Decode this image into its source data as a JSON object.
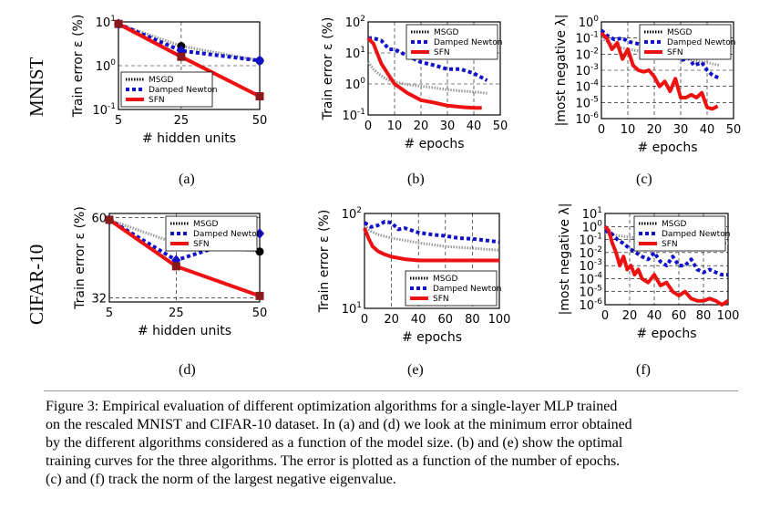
{
  "row_labels": [
    "MNIST",
    "CIFAR-10"
  ],
  "sublabels": [
    "(a)",
    "(b)",
    "(c)",
    "(d)",
    "(e)",
    "(f)"
  ],
  "legend": {
    "msgd": "MSGD",
    "damped": "Damped Newton",
    "sfn": "SFN"
  },
  "colors": {
    "msgd": "#999999",
    "damped": "#1111cc",
    "sfn": "#ee1111"
  },
  "caption": {
    "lines": [
      "Figure 3:  Empirical evaluation of different optimization algorithms for a single-layer MLP trained",
      "on the rescaled MNIST and CIFAR-10 dataset. In (a) and (d) we look at the minimum error obtained",
      "by the different algorithms considered as a function of the model size. (b) and (e) show the optimal",
      "training curves for the three algorithms. The error is plotted as a function of the number of epochs.",
      "(c) and (f) track the norm of the largest negative eigenvalue."
    ]
  },
  "chart_data": [
    {
      "id": "a",
      "type": "line",
      "xlabel": "# hidden units",
      "ylabel": "Train error ε (%)",
      "xticks": [
        "5",
        "25",
        "50"
      ],
      "yticks": [
        "10^1",
        "10^0",
        "10^-1"
      ],
      "yscale": "log",
      "ylim": [
        0.1,
        10
      ],
      "x": [
        5,
        25,
        50
      ],
      "series": [
        {
          "name": "MSGD",
          "values": [
            9.0,
            2.8,
            1.3
          ]
        },
        {
          "name": "Damped Newton",
          "values": [
            9.0,
            2.2,
            1.3
          ]
        },
        {
          "name": "SFN",
          "values": [
            9.0,
            1.6,
            0.2
          ]
        }
      ],
      "legend_position": "bottom-left"
    },
    {
      "id": "b",
      "type": "line",
      "xlabel": "# epochs",
      "ylabel": "Train error ε (%)",
      "xticks": [
        "0",
        "10",
        "20",
        "30",
        "40",
        "50"
      ],
      "yticks": [
        "10^2",
        "10^1",
        "10^0",
        "10^-1"
      ],
      "yscale": "log",
      "xlim": [
        0,
        50
      ],
      "ylim": [
        0.1,
        100
      ],
      "series": [
        {
          "name": "MSGD",
          "x": [
            0,
            2,
            4,
            6,
            8,
            10,
            15,
            20,
            25,
            30,
            35,
            40,
            45
          ],
          "values": [
            5,
            3,
            2.1,
            1.6,
            1.3,
            1.15,
            0.95,
            0.85,
            0.75,
            0.65,
            0.6,
            0.55,
            0.5
          ]
        },
        {
          "name": "Damped Newton",
          "x": [
            0,
            2,
            5,
            8,
            10,
            15,
            20,
            25,
            30,
            35,
            40,
            45
          ],
          "values": [
            30,
            30,
            25,
            13,
            13,
            8,
            5,
            4,
            3,
            3,
            2.2,
            1.3
          ]
        },
        {
          "name": "SFN",
          "x": [
            0,
            2,
            5,
            8,
            10,
            15,
            20,
            25,
            30,
            35,
            40,
            43
          ],
          "values": [
            30,
            20,
            4.5,
            1.8,
            1.0,
            0.5,
            0.3,
            0.25,
            0.2,
            0.18,
            0.17,
            0.17
          ]
        }
      ],
      "legend_position": "top-right"
    },
    {
      "id": "c",
      "type": "line",
      "xlabel": "# epochs",
      "ylabel": "|most negative λ|",
      "xticks": [
        "0",
        "10",
        "20",
        "30",
        "40",
        "50"
      ],
      "yticks": [
        "10^0",
        "10^-1",
        "10^-2",
        "10^-3",
        "10^-4",
        "10^-5",
        "10^-6"
      ],
      "yscale": "log",
      "xlim": [
        0,
        50
      ],
      "ylim": [
        1e-06,
        1
      ],
      "series": [
        {
          "name": "MSGD",
          "x": [
            0,
            5,
            10,
            15,
            20,
            25,
            30,
            35,
            40,
            45
          ],
          "values": [
            0.1,
            0.03,
            0.02,
            0.015,
            0.01,
            0.008,
            0.006,
            0.004,
            0.003,
            0.002
          ]
        },
        {
          "name": "Damped Newton",
          "x": [
            0,
            2,
            5,
            8,
            10,
            15,
            18,
            20,
            25,
            28,
            30,
            33,
            35,
            38,
            40,
            42,
            45
          ],
          "values": [
            0.3,
            0.15,
            0.08,
            0.1,
            0.06,
            0.04,
            0.01,
            0.02,
            0.008,
            0.01,
            0.004,
            0.006,
            0.002,
            0.003,
            0.001,
            0.0005,
            0.0003
          ]
        },
        {
          "name": "SFN",
          "x": [
            0,
            2,
            4,
            6,
            8,
            10,
            12,
            14,
            16,
            18,
            20,
            22,
            24,
            26,
            28,
            30,
            32,
            34,
            36,
            38,
            40,
            42,
            44
          ],
          "values": [
            0.2,
            0.1,
            0.02,
            0.05,
            0.005,
            0.02,
            0.002,
            0.001,
            0.0008,
            0.001,
            0.0004,
            0.0001,
            0.0002,
            5e-05,
            0.0003,
            2e-05,
            2e-05,
            3e-05,
            2e-05,
            4e-05,
            5e-06,
            4e-06,
            6e-06
          ]
        }
      ],
      "legend_position": "top-right"
    },
    {
      "id": "d",
      "type": "line",
      "xlabel": "# hidden units",
      "ylabel": "Train error ε (%)",
      "xticks": [
        "5",
        "25",
        "50"
      ],
      "yticks": [
        "60",
        "32"
      ],
      "yscale": "log",
      "ylim": [
        31,
        62
      ],
      "x": [
        5,
        25,
        50
      ],
      "series": [
        {
          "name": "MSGD",
          "values": [
            59,
            49,
            46
          ]
        },
        {
          "name": "Damped Newton",
          "values": [
            59,
            43,
            53
          ]
        },
        {
          "name": "SFN",
          "values": [
            59,
            41,
            32.5
          ]
        }
      ],
      "legend_position": "top-right"
    },
    {
      "id": "e",
      "type": "line",
      "xlabel": "# epochs",
      "ylabel": "Train error ε (%)",
      "xticks": [
        "0",
        "20",
        "40",
        "60",
        "80",
        "100"
      ],
      "yticks": [
        "10^2",
        "10^1"
      ],
      "yscale": "log",
      "xlim": [
        0,
        100
      ],
      "ylim": [
        10,
        100
      ],
      "series": [
        {
          "name": "MSGD",
          "x": [
            0,
            5,
            10,
            20,
            30,
            40,
            50,
            60,
            70,
            80,
            90,
            100
          ],
          "values": [
            75,
            65,
            60,
            55,
            52,
            49,
            47,
            45,
            44,
            43,
            42,
            41
          ]
        },
        {
          "name": "Damped Newton",
          "x": [
            0,
            5,
            10,
            15,
            20,
            25,
            30,
            40,
            50,
            60,
            70,
            80,
            90,
            100
          ],
          "values": [
            80,
            72,
            75,
            82,
            80,
            68,
            70,
            63,
            60,
            58,
            55,
            54,
            52,
            50
          ]
        },
        {
          "name": "SFN",
          "x": [
            0,
            3,
            6,
            10,
            15,
            20,
            30,
            40,
            60,
            80,
            100
          ],
          "values": [
            70,
            55,
            45,
            40,
            37,
            35,
            33,
            32,
            32,
            32,
            32
          ]
        }
      ],
      "legend_position": "bottom-right"
    },
    {
      "id": "f",
      "type": "line",
      "xlabel": "# epochs",
      "ylabel": "|most negative λ|",
      "xticks": [
        "0",
        "20",
        "40",
        "60",
        "80",
        "100"
      ],
      "yticks": [
        "10^1",
        "10^0",
        "10^-1",
        "10^-2",
        "10^-3",
        "10^-4",
        "10^-5",
        "10^-6"
      ],
      "yscale": "log",
      "xlim": [
        0,
        100
      ],
      "ylim": [
        1e-06,
        10
      ],
      "series": [
        {
          "name": "MSGD",
          "x": [
            0,
            10,
            20,
            30,
            40,
            50,
            60,
            70,
            80,
            90,
            100
          ],
          "values": [
            0.3,
            0.2,
            0.15,
            0.12,
            0.1,
            0.1,
            0.09,
            0.08,
            0.07,
            0.06,
            0.05
          ]
        },
        {
          "name": "Damped Newton",
          "x": [
            0,
            5,
            10,
            15,
            20,
            25,
            30,
            35,
            40,
            45,
            50,
            55,
            60,
            65,
            70,
            75,
            80,
            85,
            90,
            95,
            100
          ],
          "values": [
            0.5,
            0.3,
            0.1,
            0.05,
            0.02,
            0.01,
            0.005,
            0.003,
            0.01,
            0.002,
            0.001,
            0.005,
            0.001,
            0.001,
            0.003,
            0.0005,
            0.0003,
            0.0005,
            0.0003,
            0.0002,
            0.0002
          ]
        },
        {
          "name": "SFN",
          "x": [
            0,
            3,
            6,
            9,
            12,
            15,
            18,
            21,
            24,
            27,
            30,
            35,
            40,
            45,
            50,
            55,
            60,
            65,
            70,
            75,
            80,
            85,
            90,
            95,
            100
          ],
          "values": [
            1,
            0.5,
            0.05,
            0.01,
            0.001,
            0.005,
            0.0005,
            0.001,
            0.0002,
            0.0005,
            0.0001,
            5e-05,
            0.0002,
            3e-05,
            5e-05,
            1e-05,
            5e-06,
            1e-05,
            3e-06,
            2e-06,
            2e-06,
            3e-06,
            2e-06,
            1e-06,
            2e-06
          ]
        }
      ],
      "legend_position": "top-right"
    }
  ]
}
